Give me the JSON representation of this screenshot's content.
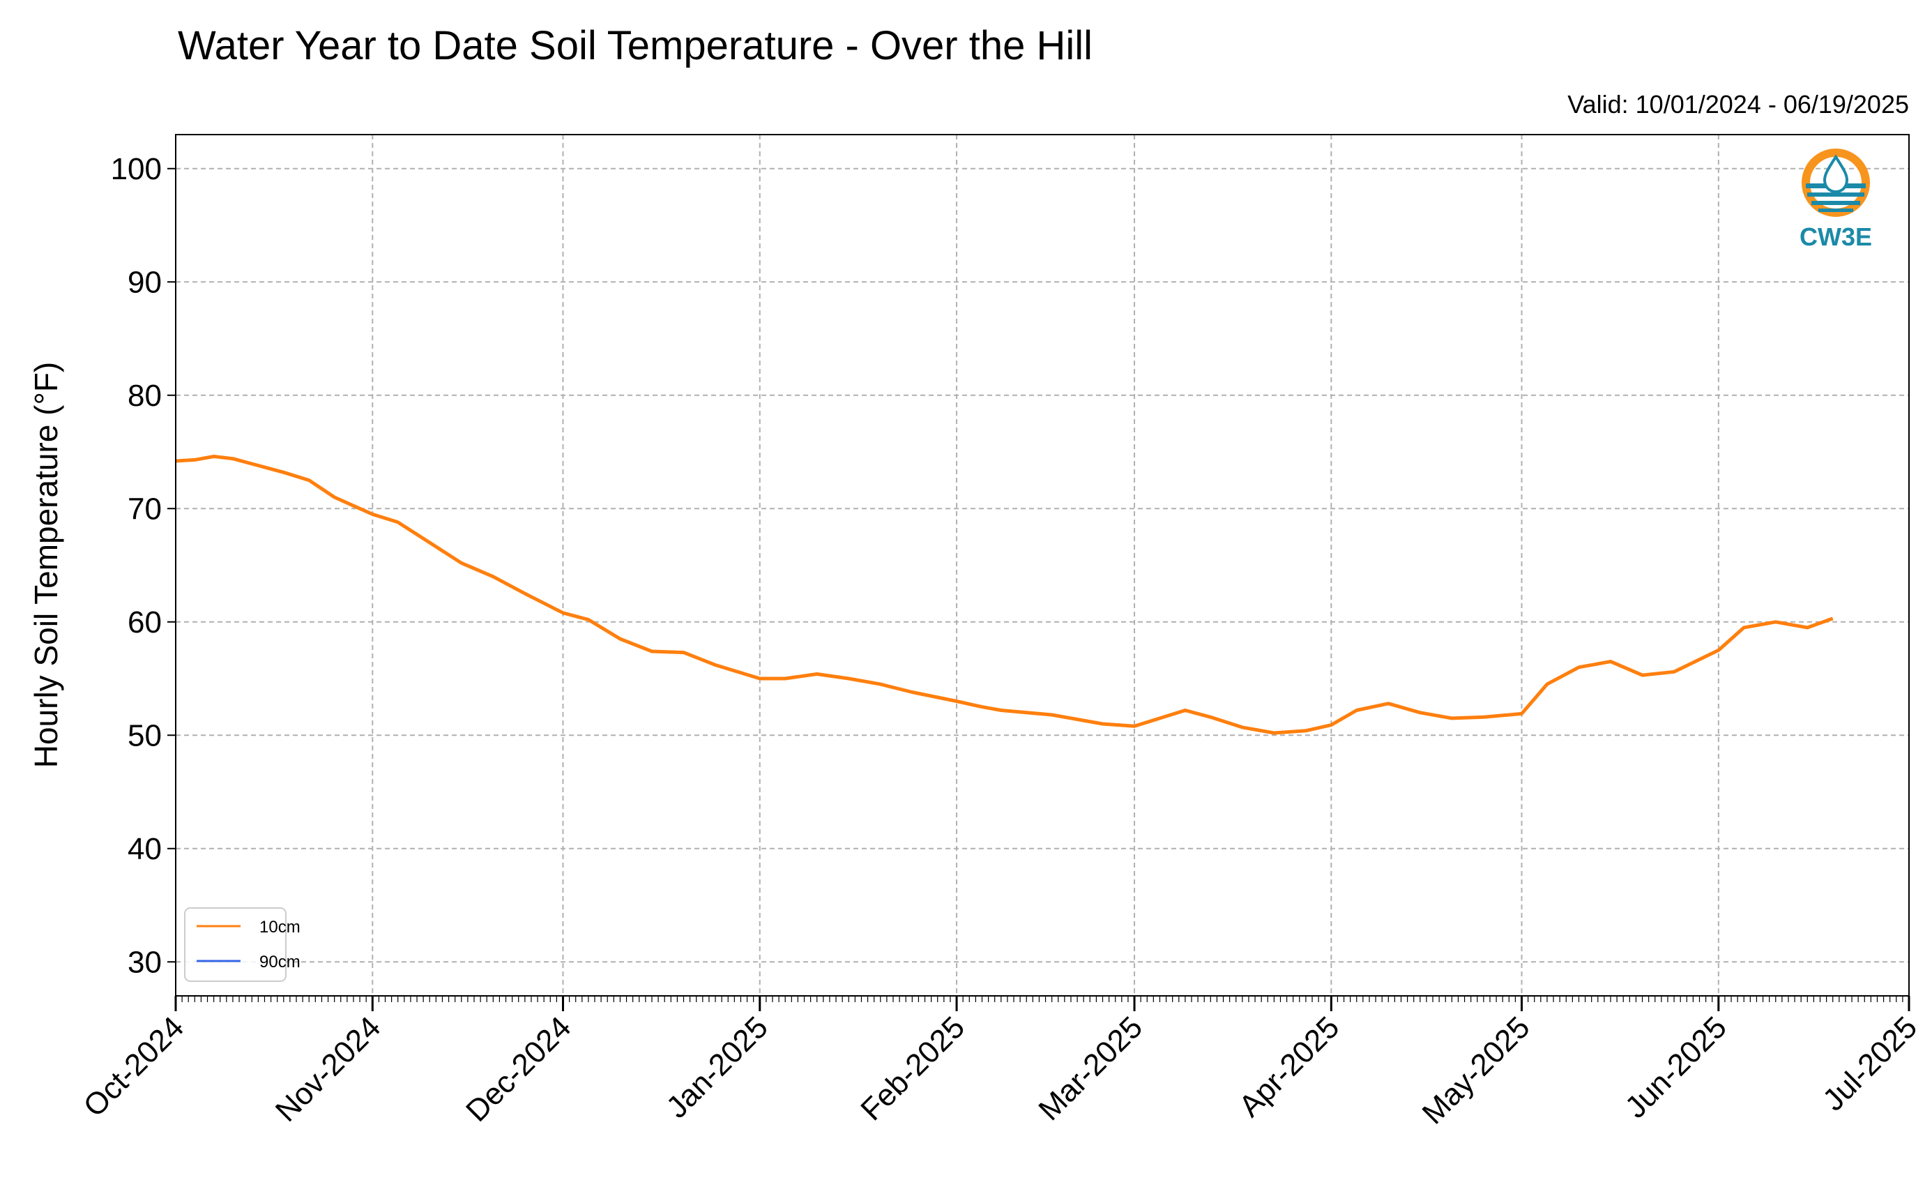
{
  "title": "Water Year to Date Soil Temperature - Over the Hill",
  "valid_text": "Valid: 10/01/2024 - 06/19/2025",
  "logo_text": "CW3E",
  "colors": {
    "series_10cm": "#ff7f0e",
    "series_90cm": "#3366e6",
    "grid": "#b0b0b0",
    "logo_orange": "#f7941d",
    "logo_teal": "#1b8aa8"
  },
  "chart_data": {
    "type": "line",
    "title": "Water Year to Date Soil Temperature - Over the Hill",
    "ylabel": "Hourly Soil Temperature (°F)",
    "xlabel": "",
    "ylim": [
      27,
      103
    ],
    "xlim": [
      "2024-10-01",
      "2025-07-01"
    ],
    "yticks": [
      30,
      40,
      50,
      60,
      70,
      80,
      90,
      100
    ],
    "xticks": [
      "Oct-2024",
      "Nov-2024",
      "Dec-2024",
      "Jan-2025",
      "Feb-2025",
      "Mar-2025",
      "Apr-2025",
      "May-2025",
      "Jun-2025",
      "Jul-2025"
    ],
    "xtick_dates": [
      "2024-10-01",
      "2024-11-01",
      "2024-12-01",
      "2025-01-01",
      "2025-02-01",
      "2025-03-01",
      "2025-04-01",
      "2025-05-01",
      "2025-06-01",
      "2025-07-01"
    ],
    "grid": true,
    "legend": "lower-left",
    "series": [
      {
        "name": "10cm",
        "color": "#ff7f0e",
        "x": [
          "2024-10-01",
          "2024-10-04",
          "2024-10-07",
          "2024-10-10",
          "2024-10-14",
          "2024-10-18",
          "2024-10-22",
          "2024-10-26",
          "2024-11-01",
          "2024-11-05",
          "2024-11-10",
          "2024-11-15",
          "2024-11-20",
          "2024-11-25",
          "2024-12-01",
          "2024-12-05",
          "2024-12-10",
          "2024-12-15",
          "2024-12-20",
          "2024-12-25",
          "2025-01-01",
          "2025-01-05",
          "2025-01-10",
          "2025-01-15",
          "2025-01-20",
          "2025-01-25",
          "2025-02-01",
          "2025-02-05",
          "2025-02-08",
          "2025-02-12",
          "2025-02-16",
          "2025-02-20",
          "2025-02-24",
          "2025-03-01",
          "2025-03-05",
          "2025-03-09",
          "2025-03-13",
          "2025-03-18",
          "2025-03-23",
          "2025-03-28",
          "2025-04-01",
          "2025-04-05",
          "2025-04-10",
          "2025-04-15",
          "2025-04-20",
          "2025-04-25",
          "2025-05-01",
          "2025-05-05",
          "2025-05-10",
          "2025-05-15",
          "2025-05-20",
          "2025-05-25",
          "2025-06-01",
          "2025-06-05",
          "2025-06-10",
          "2025-06-15",
          "2025-06-19"
        ],
        "values": [
          74.2,
          74.3,
          74.6,
          74.4,
          73.8,
          73.2,
          72.5,
          71.0,
          69.5,
          68.8,
          67.0,
          65.2,
          64.0,
          62.5,
          60.8,
          60.2,
          58.5,
          57.4,
          57.3,
          56.2,
          55.0,
          55.0,
          55.4,
          55.0,
          54.5,
          53.8,
          53.0,
          52.5,
          52.2,
          52.0,
          51.8,
          51.4,
          51.0,
          50.8,
          51.5,
          52.2,
          51.6,
          50.7,
          50.2,
          50.4,
          50.9,
          52.2,
          52.8,
          52.0,
          51.5,
          51.6,
          51.9,
          54.5,
          56.0,
          56.5,
          55.3,
          55.6,
          57.5,
          59.5,
          60.0,
          59.5,
          60.3
        ]
      },
      {
        "name": "90cm",
        "color": "#3366e6",
        "x": [],
        "values": []
      }
    ]
  }
}
